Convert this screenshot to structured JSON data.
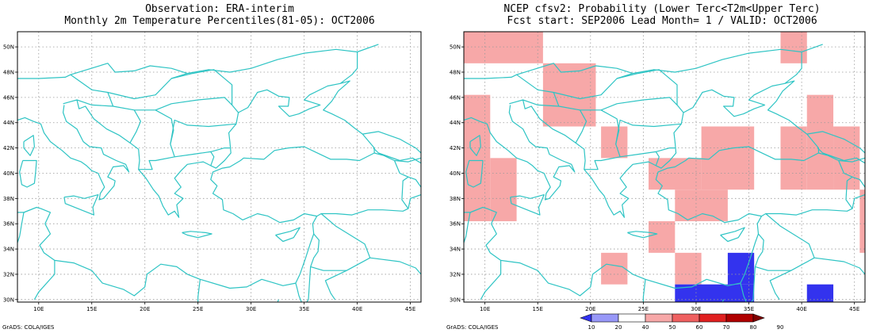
{
  "left_panel": {
    "title_line1": "Observation: ERA-interim",
    "title_line2": "Monthly 2m Temperature Percentiles(81-05): OCT2006",
    "credit": "GrADS: COLA/IGES",
    "lat_labels": [
      "50N",
      "48N",
      "46N",
      "44N",
      "42N",
      "40N",
      "38N",
      "36N",
      "34N",
      "32N",
      "30N"
    ],
    "lon_labels": [
      "10E",
      "15E",
      "20E",
      "25E",
      "30E",
      "35E",
      "40E",
      "45E"
    ]
  },
  "right_panel": {
    "title_line1": "NCEP cfsv2: Probability (Lower Terc<T2m<Upper Terc)",
    "title_line2": "Fcst start: SEP2006  Lead Month= 1 / VALID: OCT2006",
    "credit": "GrADS: COLA/IGES",
    "lat_labels": [
      "50N",
      "48N",
      "46N",
      "44N",
      "42N",
      "40N",
      "38N",
      "36N",
      "34N",
      "32N",
      "30N"
    ],
    "lon_labels": [
      "10E",
      "15E",
      "20E",
      "25E",
      "30E",
      "35E",
      "40E",
      "45E"
    ]
  },
  "map_extent": {
    "lon_min": 8,
    "lon_max": 46,
    "lat_min": 29.8,
    "lat_max": 51.2
  },
  "grid_lons": [
    10,
    15,
    20,
    25,
    30,
    35,
    40,
    45
  ],
  "grid_lats": [
    30,
    32,
    34,
    36,
    38,
    40,
    42,
    44,
    46,
    48,
    50
  ],
  "colors": {
    "coast": "#2ec4c4",
    "grid": "#999999",
    "light_red": "#f7a8a8",
    "blue": "#3333ee"
  },
  "colorbar": {
    "ticks": [
      "10",
      "20",
      "40",
      "50",
      "60",
      "70",
      "80",
      "90"
    ],
    "colors": [
      "#3232f0",
      "#9898f8",
      "#ffffff",
      "#f7a8a8",
      "#ef6060",
      "#e02020",
      "#b00000",
      "#800000"
    ]
  },
  "probability_cells": [
    {
      "lon": [
        8,
        15.5
      ],
      "lat": [
        48.7,
        51.2
      ],
      "cls": "light_red"
    },
    {
      "lon": [
        38,
        40.5
      ],
      "lat": [
        48.7,
        51.2
      ],
      "cls": "light_red"
    },
    {
      "lon": [
        15.5,
        20.5
      ],
      "lat": [
        43.7,
        48.7
      ],
      "cls": "light_red"
    },
    {
      "lon": [
        8,
        10.5
      ],
      "lat": [
        36.2,
        46.2
      ],
      "cls": "light_red"
    },
    {
      "lon": [
        10.5,
        13
      ],
      "lat": [
        36.2,
        41.2
      ],
      "cls": "light_red"
    },
    {
      "lon": [
        21,
        23.5
      ],
      "lat": [
        41.2,
        43.7
      ],
      "cls": "light_red"
    },
    {
      "lon": [
        30.5,
        35.5
      ],
      "lat": [
        38.7,
        43.7
      ],
      "cls": "light_red"
    },
    {
      "lon": [
        25.5,
        30.5
      ],
      "lat": [
        38.7,
        41.2
      ],
      "cls": "light_red"
    },
    {
      "lon": [
        28,
        33
      ],
      "lat": [
        36.2,
        38.7
      ],
      "cls": "light_red"
    },
    {
      "lon": [
        38,
        40.5
      ],
      "lat": [
        38.7,
        43.7
      ],
      "cls": "light_red"
    },
    {
      "lon": [
        40.5,
        43
      ],
      "lat": [
        38.7,
        46.2
      ],
      "cls": "light_red"
    },
    {
      "lon": [
        43,
        45.5
      ],
      "lat": [
        38.7,
        43.7
      ],
      "cls": "light_red"
    },
    {
      "lon": [
        45.5,
        46
      ],
      "lat": [
        33.7,
        38.7
      ],
      "cls": "light_red"
    },
    {
      "lon": [
        25.5,
        28
      ],
      "lat": [
        33.7,
        36.2
      ],
      "cls": "light_red"
    },
    {
      "lon": [
        21,
        23.5
      ],
      "lat": [
        31.2,
        33.7
      ],
      "cls": "light_red"
    },
    {
      "lon": [
        28,
        30.5
      ],
      "lat": [
        31.2,
        33.7
      ],
      "cls": "light_red"
    },
    {
      "lon": [
        28,
        35.5
      ],
      "lat": [
        29.8,
        31.2
      ],
      "cls": "blue"
    },
    {
      "lon": [
        33,
        35.5
      ],
      "lat": [
        31.2,
        33.7
      ],
      "cls": "blue"
    },
    {
      "lon": [
        40.5,
        43
      ],
      "lat": [
        29.8,
        31.2
      ],
      "cls": "blue"
    }
  ],
  "coastlines": [
    [
      [
        12.3,
        45.5
      ],
      [
        13.6,
        45.8
      ],
      [
        13.8,
        45.1
      ],
      [
        14.4,
        45.3
      ],
      [
        15.2,
        44.3
      ],
      [
        16.4,
        43.5
      ],
      [
        17.6,
        43.0
      ],
      [
        18.6,
        42.4
      ],
      [
        19.4,
        41.9
      ],
      [
        19.5,
        41.0
      ],
      [
        19.4,
        40.3
      ],
      [
        20.1,
        39.6
      ],
      [
        20.8,
        38.7
      ],
      [
        21.3,
        38.2
      ],
      [
        21.7,
        37.4
      ],
      [
        22.2,
        36.7
      ],
      [
        22.8,
        37.0
      ],
      [
        23.2,
        36.5
      ],
      [
        23.0,
        37.5
      ],
      [
        23.6,
        38.0
      ],
      [
        22.8,
        38.4
      ],
      [
        23.4,
        38.9
      ],
      [
        22.8,
        39.6
      ],
      [
        23.4,
        40.2
      ],
      [
        24.0,
        40.7
      ],
      [
        25.5,
        40.9
      ],
      [
        26.2,
        40.6
      ],
      [
        26.7,
        40.4
      ],
      [
        27.5,
        41.0
      ],
      [
        28.1,
        41.6
      ],
      [
        28.0,
        42.5
      ],
      [
        27.9,
        43.2
      ],
      [
        28.6,
        43.9
      ],
      [
        28.8,
        44.8
      ],
      [
        29.7,
        45.2
      ],
      [
        30.6,
        46.4
      ],
      [
        31.5,
        46.6
      ],
      [
        32.6,
        46.1
      ],
      [
        33.6,
        46.0
      ],
      [
        33.5,
        45.3
      ],
      [
        32.6,
        45.3
      ],
      [
        33.6,
        44.5
      ],
      [
        34.5,
        44.7
      ],
      [
        35.5,
        45.1
      ],
      [
        36.5,
        45.4
      ],
      [
        35.0,
        45.8
      ],
      [
        35.5,
        46.2
      ],
      [
        37.2,
        46.9
      ],
      [
        38.4,
        47.1
      ],
      [
        39.3,
        47.3
      ],
      [
        38.2,
        46.5
      ],
      [
        37.6,
        45.7
      ],
      [
        36.8,
        45.0
      ],
      [
        37.6,
        44.7
      ],
      [
        38.8,
        44.2
      ],
      [
        39.7,
        43.6
      ],
      [
        40.5,
        43.1
      ],
      [
        41.6,
        42.0
      ],
      [
        41.6,
        41.6
      ],
      [
        40.2,
        41.0
      ],
      [
        39.0,
        41.1
      ],
      [
        37.5,
        41.1
      ],
      [
        36.0,
        41.7
      ],
      [
        35.0,
        42.1
      ],
      [
        33.5,
        42.0
      ],
      [
        32.2,
        41.8
      ],
      [
        31.2,
        41.1
      ],
      [
        29.3,
        41.2
      ],
      [
        29.0,
        41.0
      ],
      [
        28.0,
        40.5
      ],
      [
        27.3,
        40.4
      ],
      [
        26.4,
        40.1
      ],
      [
        26.2,
        39.5
      ],
      [
        26.8,
        39.0
      ],
      [
        26.4,
        38.4
      ],
      [
        27.3,
        37.9
      ],
      [
        27.4,
        37.1
      ],
      [
        28.3,
        36.8
      ],
      [
        29.2,
        36.3
      ],
      [
        30.6,
        36.8
      ],
      [
        31.6,
        36.6
      ],
      [
        32.7,
        36.1
      ],
      [
        34.0,
        36.3
      ],
      [
        35.0,
        36.8
      ],
      [
        36.2,
        36.6
      ],
      [
        35.8,
        36.0
      ],
      [
        35.9,
        35.2
      ],
      [
        35.6,
        34.5
      ],
      [
        35.1,
        33.2
      ],
      [
        34.6,
        32.0
      ],
      [
        34.2,
        31.3
      ],
      [
        33.0,
        31.1
      ],
      [
        32.2,
        31.3
      ],
      [
        31.0,
        31.6
      ],
      [
        29.6,
        31.0
      ],
      [
        28.0,
        30.9
      ],
      [
        25.2,
        31.6
      ],
      [
        24.0,
        32.0
      ],
      [
        23.0,
        32.6
      ],
      [
        21.5,
        32.8
      ],
      [
        20.2,
        32.0
      ],
      [
        20.0,
        31.0
      ],
      [
        19.0,
        30.3
      ],
      [
        18.0,
        30.8
      ],
      [
        16.0,
        31.3
      ],
      [
        15.0,
        32.3
      ],
      [
        13.3,
        32.9
      ],
      [
        11.5,
        33.1
      ],
      [
        10.5,
        33.7
      ],
      [
        10.1,
        34.3
      ],
      [
        11.1,
        35.2
      ],
      [
        10.6,
        36.0
      ],
      [
        11.1,
        36.9
      ],
      [
        10.2,
        37.2
      ],
      [
        9.8,
        37.3
      ],
      [
        8.6,
        36.9
      ],
      [
        8.0,
        36.9
      ]
    ],
    [
      [
        8.0,
        44.2
      ],
      [
        8.7,
        44.4
      ],
      [
        9.5,
        44.1
      ],
      [
        10.2,
        43.9
      ],
      [
        10.5,
        43.2
      ],
      [
        11.1,
        42.5
      ],
      [
        12.2,
        41.8
      ],
      [
        13.0,
        41.2
      ],
      [
        14.0,
        40.9
      ],
      [
        14.5,
        40.6
      ],
      [
        15.0,
        40.2
      ],
      [
        15.6,
        40.0
      ],
      [
        15.8,
        39.6
      ],
      [
        16.2,
        38.9
      ],
      [
        15.8,
        38.4
      ],
      [
        15.7,
        37.9
      ],
      [
        16.1,
        38.0
      ],
      [
        16.6,
        38.5
      ],
      [
        17.1,
        39.0
      ],
      [
        17.2,
        39.4
      ],
      [
        16.5,
        39.7
      ],
      [
        17.0,
        40.5
      ],
      [
        18.0,
        40.6
      ],
      [
        18.5,
        40.1
      ],
      [
        18.2,
        40.7
      ],
      [
        17.3,
        41.0
      ],
      [
        16.1,
        41.5
      ],
      [
        15.9,
        42.0
      ],
      [
        14.8,
        42.1
      ],
      [
        14.2,
        42.5
      ],
      [
        13.6,
        43.5
      ],
      [
        12.6,
        44.1
      ],
      [
        12.3,
        44.8
      ],
      [
        12.4,
        45.4
      ]
    ],
    [
      [
        12.4,
        38.1
      ],
      [
        13.3,
        38.2
      ],
      [
        14.3,
        38.0
      ],
      [
        15.6,
        38.3
      ],
      [
        15.1,
        37.3
      ],
      [
        15.2,
        36.7
      ],
      [
        14.3,
        37.0
      ],
      [
        12.5,
        37.6
      ],
      [
        12.4,
        38.1
      ]
    ],
    [
      [
        8.5,
        41.0
      ],
      [
        9.8,
        41.0
      ],
      [
        9.7,
        40.0
      ],
      [
        9.6,
        39.2
      ],
      [
        8.9,
        38.9
      ],
      [
        8.4,
        39.1
      ],
      [
        8.2,
        40.1
      ],
      [
        8.5,
        41.0
      ]
    ],
    [
      [
        8.6,
        42.5
      ],
      [
        9.5,
        43.0
      ],
      [
        9.6,
        42.1
      ],
      [
        9.2,
        41.4
      ],
      [
        8.6,
        42.0
      ],
      [
        8.6,
        42.5
      ]
    ],
    [
      [
        23.5,
        35.3
      ],
      [
        24.3,
        35.4
      ],
      [
        25.7,
        35.3
      ],
      [
        26.3,
        35.2
      ],
      [
        25.0,
        34.9
      ],
      [
        24.0,
        35.1
      ],
      [
        23.5,
        35.3
      ]
    ],
    [
      [
        32.3,
        35.1
      ],
      [
        33.7,
        35.4
      ],
      [
        34.6,
        35.7
      ],
      [
        34.0,
        34.9
      ],
      [
        33.0,
        34.6
      ],
      [
        32.3,
        35.1
      ]
    ],
    [
      [
        41.5,
        42.0
      ],
      [
        42.0,
        41.6
      ],
      [
        44.0,
        41.0
      ],
      [
        45.2,
        41.2
      ],
      [
        46.0,
        40.8
      ]
    ],
    [
      [
        35.0,
        29.5
      ],
      [
        34.4,
        28.0
      ],
      [
        33.5,
        27.8
      ]
    ],
    [
      [
        32.5,
        29.8
      ],
      [
        32.6,
        30.0
      ]
    ],
    [
      [
        8,
        47.5
      ],
      [
        10,
        47.5
      ],
      [
        12.5,
        47.6
      ],
      [
        13.0,
        47.8
      ],
      [
        16.5,
        48.7
      ],
      [
        17.2,
        48.0
      ],
      [
        19.0,
        48.1
      ],
      [
        20.5,
        48.5
      ],
      [
        22.5,
        48.3
      ],
      [
        24.0,
        47.9
      ],
      [
        26.0,
        48.2
      ],
      [
        28.0,
        48.0
      ],
      [
        30.0,
        48.3
      ],
      [
        32.5,
        49.0
      ],
      [
        35.0,
        49.5
      ],
      [
        38.0,
        49.8
      ],
      [
        40.0,
        49.6
      ],
      [
        42.0,
        50.2
      ]
    ],
    [
      [
        13.0,
        47.8
      ],
      [
        15.0,
        46.6
      ],
      [
        16.5,
        46.4
      ],
      [
        19.0,
        45.9
      ],
      [
        21.0,
        46.2
      ],
      [
        22.5,
        47.5
      ],
      [
        24.0,
        47.9
      ]
    ],
    [
      [
        13.6,
        45.8
      ],
      [
        15.0,
        45.4
      ],
      [
        17.0,
        45.3
      ],
      [
        19.0,
        45.0
      ],
      [
        19.6,
        44.1
      ],
      [
        19.2,
        43.3
      ],
      [
        18.6,
        42.4
      ]
    ],
    [
      [
        16.5,
        46.4
      ],
      [
        17.0,
        45.3
      ]
    ],
    [
      [
        19.0,
        45.0
      ],
      [
        21.0,
        45.0
      ],
      [
        22.5,
        44.3
      ],
      [
        22.7,
        43.4
      ],
      [
        22.4,
        42.3
      ],
      [
        22.8,
        41.3
      ],
      [
        21.0,
        41.0
      ],
      [
        20.4,
        41.0
      ],
      [
        20.7,
        40.3
      ],
      [
        19.4,
        40.3
      ]
    ],
    [
      [
        22.4,
        42.3
      ],
      [
        22.8,
        44.2
      ],
      [
        24.0,
        43.8
      ],
      [
        26.0,
        43.7
      ],
      [
        28.6,
        43.9
      ]
    ],
    [
      [
        22.8,
        41.3
      ],
      [
        24.5,
        41.5
      ],
      [
        26.2,
        41.7
      ],
      [
        26.5,
        41.3
      ],
      [
        26.2,
        40.6
      ]
    ],
    [
      [
        26.2,
        41.7
      ],
      [
        27.5,
        42.0
      ],
      [
        28.0,
        42.0
      ]
    ],
    [
      [
        21.0,
        45.0
      ],
      [
        22.5,
        45.5
      ],
      [
        25.0,
        45.8
      ],
      [
        27.5,
        46.0
      ],
      [
        28.2,
        45.4
      ],
      [
        28.8,
        44.8
      ]
    ],
    [
      [
        22.5,
        47.5
      ],
      [
        24.5,
        47.9
      ],
      [
        26.5,
        48.2
      ],
      [
        28.2,
        47.0
      ],
      [
        28.2,
        45.4
      ]
    ],
    [
      [
        40.0,
        49.6
      ],
      [
        40.0,
        48.3
      ],
      [
        39.5,
        47.8
      ],
      [
        38.4,
        47.1
      ]
    ],
    [
      [
        40.5,
        43.1
      ],
      [
        42.0,
        43.3
      ],
      [
        44.0,
        42.7
      ],
      [
        45.5,
        42.0
      ],
      [
        46.0,
        41.6
      ]
    ],
    [
      [
        41.6,
        41.6
      ],
      [
        42.5,
        41.4
      ],
      [
        43.5,
        41.0
      ],
      [
        44.8,
        40.9
      ],
      [
        46.0,
        41.2
      ]
    ],
    [
      [
        43.5,
        41.0
      ],
      [
        44.0,
        40.0
      ],
      [
        44.8,
        39.7
      ],
      [
        45.5,
        39.5
      ],
      [
        46.0,
        38.9
      ]
    ],
    [
      [
        44.8,
        39.7
      ],
      [
        44.3,
        39.4
      ],
      [
        44.2,
        37.9
      ],
      [
        44.8,
        37.2
      ],
      [
        44.3,
        37.0
      ],
      [
        42.4,
        37.1
      ],
      [
        41.0,
        37.1
      ],
      [
        39.5,
        36.7
      ],
      [
        38.0,
        36.8
      ],
      [
        36.6,
        36.8
      ],
      [
        36.2,
        36.6
      ]
    ],
    [
      [
        36.6,
        36.8
      ],
      [
        38.0,
        35.8
      ],
      [
        40.7,
        34.4
      ],
      [
        41.2,
        33.3
      ],
      [
        39.0,
        32.3
      ],
      [
        36.8,
        32.3
      ],
      [
        35.6,
        32.6
      ]
    ],
    [
      [
        35.9,
        35.2
      ],
      [
        36.4,
        34.7
      ],
      [
        36.3,
        33.8
      ],
      [
        35.9,
        33.3
      ],
      [
        35.6,
        32.6
      ],
      [
        35.5,
        31.4
      ],
      [
        35.4,
        30.0
      ],
      [
        35.0,
        29.5
      ]
    ],
    [
      [
        34.2,
        31.3
      ],
      [
        34.3,
        31.0
      ],
      [
        34.5,
        30.3
      ],
      [
        34.9,
        29.5
      ]
    ],
    [
      [
        25.2,
        31.6
      ],
      [
        25.0,
        30.2
      ],
      [
        25.0,
        29.8
      ]
    ],
    [
      [
        11.5,
        33.1
      ],
      [
        11.5,
        32.0
      ],
      [
        10.0,
        30.6
      ],
      [
        9.6,
        30.0
      ]
    ],
    [
      [
        9.8,
        37.3
      ],
      [
        8.6,
        36.9
      ],
      [
        8.4,
        36.0
      ],
      [
        8.2,
        35.0
      ],
      [
        7.8,
        34.0
      ]
    ],
    [
      [
        41.2,
        33.3
      ],
      [
        44.0,
        33.0
      ],
      [
        45.5,
        32.5
      ],
      [
        46.0,
        32.0
      ]
    ],
    [
      [
        39.0,
        32.3
      ],
      [
        37.0,
        31.5
      ],
      [
        37.5,
        30.5
      ],
      [
        37.9,
        30.0
      ]
    ],
    [
      [
        44.8,
        37.2
      ],
      [
        45.0,
        38.0
      ],
      [
        46.0,
        38.3
      ]
    ]
  ]
}
